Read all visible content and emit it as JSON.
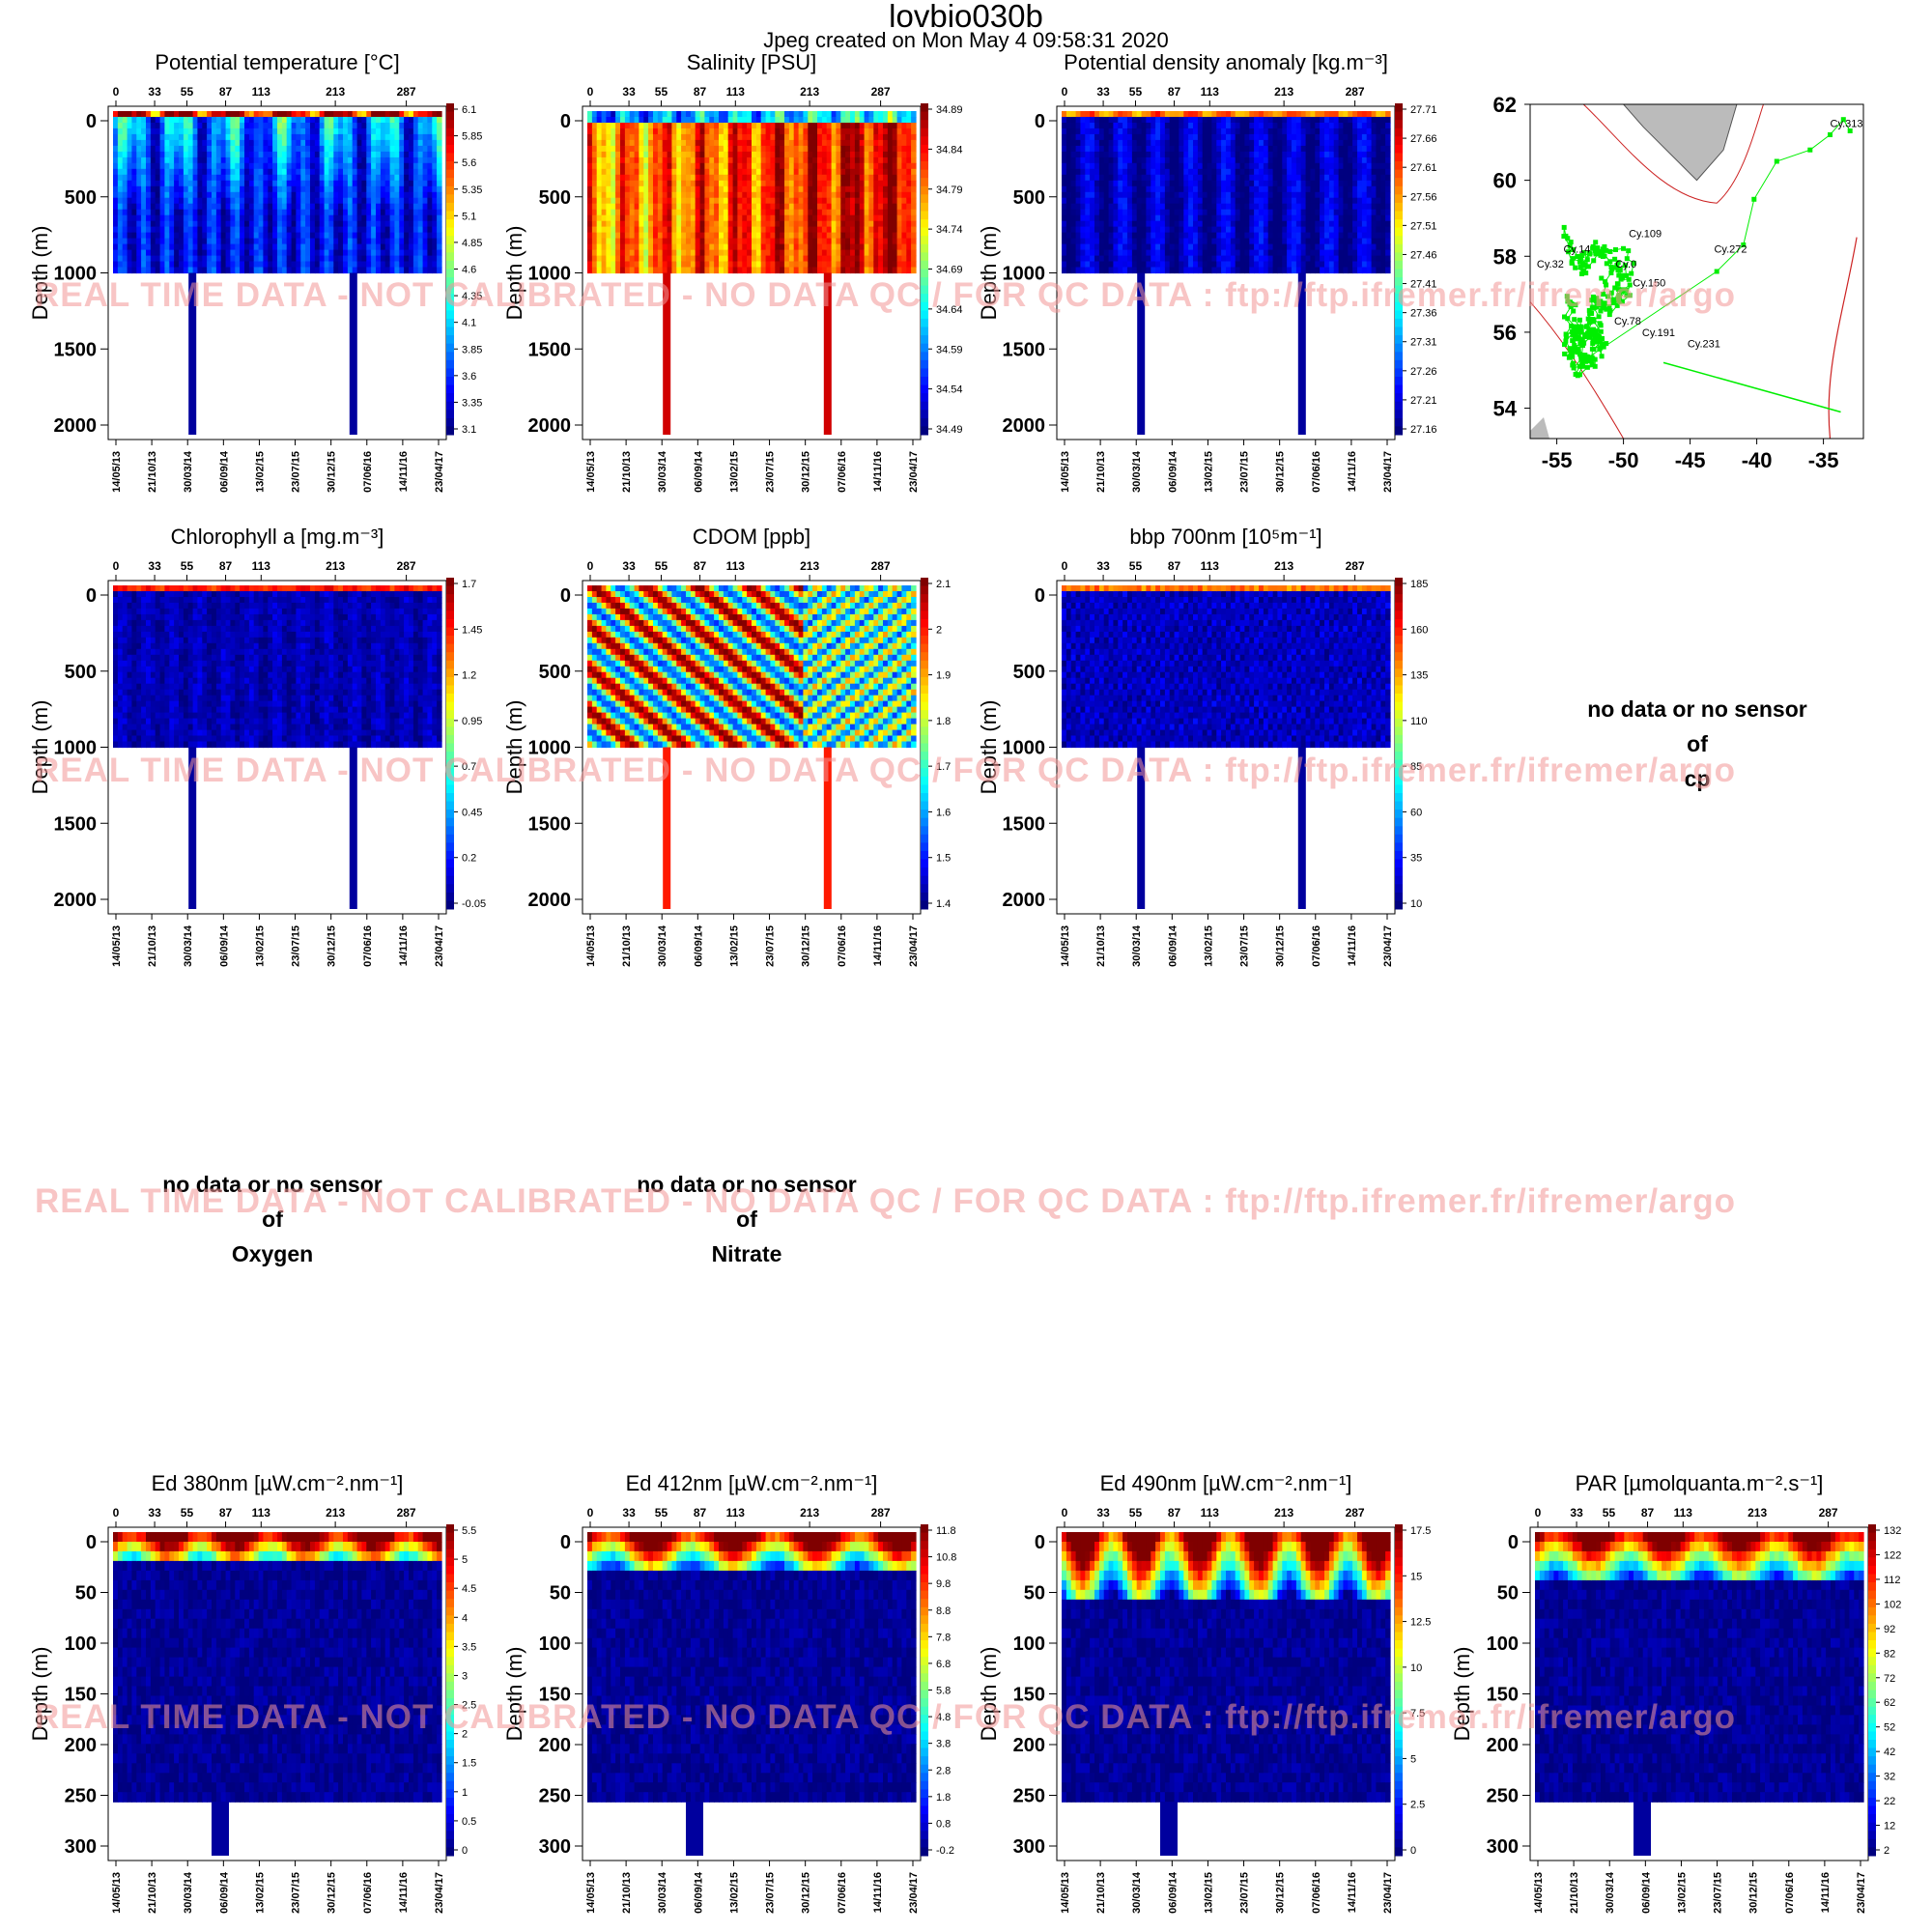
{
  "header": {
    "title": "lovbio030b",
    "subtitle": "Jpeg created on  Mon May  4 09:58:31 2020"
  },
  "watermark": "REAL TIME DATA - NOT CALIBRATED - NO DATA QC   /  FOR QC DATA : ftp://ftp.ifremer.fr/ifremer/argo",
  "colors": {
    "palette": [
      "#00007f",
      "#0000ff",
      "#007fff",
      "#00ffff",
      "#7fff7f",
      "#ffff00",
      "#ff7f00",
      "#ff0000",
      "#7f0000"
    ],
    "track": "#00ee00",
    "land": "#bbbbbb",
    "coast": "#cc2222"
  },
  "common": {
    "cycle_ticks": [
      "0",
      "33",
      "55",
      "87",
      "113",
      "213",
      "287"
    ],
    "date_ticks": [
      "14/05/13",
      "21/10/13",
      "30/03/14",
      "06/09/14",
      "13/02/15",
      "23/07/15",
      "30/12/15",
      "07/06/16",
      "14/11/16",
      "23/04/17"
    ],
    "ylabel": "Depth (m)"
  },
  "nodata": [
    {
      "lines": [
        "no data or no sensor",
        "of",
        "cp"
      ]
    },
    {
      "lines": [
        "no data or no sensor",
        "of",
        "Oxygen"
      ]
    },
    {
      "lines": [
        "no data or no sensor",
        "of",
        "Nitrate"
      ]
    }
  ],
  "chart_data": [
    {
      "type": "heatmap",
      "title": "Potential temperature [°C]",
      "ylabel": "Depth (m)",
      "ylim": [
        2000,
        0
      ],
      "yticks": [
        0,
        500,
        1000,
        1500,
        2000
      ],
      "colorbar": {
        "min": 3.1,
        "max": 6.1,
        "ticks": [
          "6.1",
          "5.85",
          "5.6",
          "5.35",
          "5.1",
          "4.85",
          "4.6",
          "4.35",
          "4.1",
          "3.85",
          "3.6",
          "3.35",
          "3.1"
        ]
      }
    },
    {
      "type": "heatmap",
      "title": "Salinity [PSU]",
      "ylabel": "Depth (m)",
      "ylim": [
        2000,
        0
      ],
      "yticks": [
        0,
        500,
        1000,
        1500,
        2000
      ],
      "colorbar": {
        "min": 34.49,
        "max": 34.89,
        "ticks": [
          "34.89",
          "34.84",
          "34.79",
          "34.74",
          "34.69",
          "34.64",
          "34.59",
          "34.54",
          "34.49"
        ]
      }
    },
    {
      "type": "heatmap",
      "title": "Potential density anomaly [kg.m⁻³]",
      "ylabel": "Depth (m)",
      "ylim": [
        2000,
        0
      ],
      "yticks": [
        0,
        500,
        1000,
        1500,
        2000
      ],
      "colorbar": {
        "min": 27.16,
        "max": 27.71,
        "ticks": [
          "27.71",
          "27.66",
          "27.61",
          "27.56",
          "27.51",
          "27.46",
          "27.41",
          "27.36",
          "27.31",
          "27.26",
          "27.21",
          "27.16"
        ]
      }
    },
    {
      "type": "scatter",
      "kind": "map",
      "xticks": [
        -55,
        -50,
        -45,
        -40,
        -35
      ],
      "yticks": [
        54,
        56,
        58,
        60,
        62
      ],
      "xlim": [
        -57,
        -32
      ],
      "ylim": [
        53.2,
        62
      ],
      "labels": [
        {
          "text": "Cy.313",
          "lon": -34.5,
          "lat": 61.4
        },
        {
          "text": "Cy.109",
          "lon": -49.6,
          "lat": 58.5
        },
        {
          "text": "Cy.14",
          "lon": -54.5,
          "lat": 58.1
        },
        {
          "text": "Cy.272",
          "lon": -43.2,
          "lat": 58.1
        },
        {
          "text": "Cy.32",
          "lon": -56.5,
          "lat": 57.7
        },
        {
          "text": "Cy.0",
          "lon": -50.6,
          "lat": 57.7
        },
        {
          "text": "Cy.150",
          "lon": -49.3,
          "lat": 57.2
        },
        {
          "text": "Cy.78",
          "lon": -50.7,
          "lat": 56.2
        },
        {
          "text": "Cy.191",
          "lon": -48.6,
          "lat": 55.9
        },
        {
          "text": "Cy.231",
          "lon": -45.2,
          "lat": 55.6
        }
      ]
    },
    {
      "type": "heatmap",
      "title": "Chlorophyll a [mg.m⁻³]",
      "ylabel": "Depth (m)",
      "ylim": [
        2000,
        0
      ],
      "yticks": [
        0,
        500,
        1000,
        1500,
        2000
      ],
      "colorbar": {
        "min": -0.05,
        "max": 1.7,
        "ticks": [
          "1.7",
          "1.45",
          "1.2",
          "0.95",
          "0.7",
          "0.45",
          "0.2",
          "-0.05"
        ]
      }
    },
    {
      "type": "heatmap",
      "title": "CDOM  [ppb]",
      "ylabel": "Depth (m)",
      "ylim": [
        2000,
        0
      ],
      "yticks": [
        0,
        500,
        1000,
        1500,
        2000
      ],
      "colorbar": {
        "min": 1.4,
        "max": 2.1,
        "ticks": [
          "2.1",
          "2",
          "1.9",
          "1.8",
          "1.7",
          "1.6",
          "1.5",
          "1.4"
        ]
      }
    },
    {
      "type": "heatmap",
      "title": "bbp 700nm [10⁵m⁻¹]",
      "ylabel": "Depth (m)",
      "ylim": [
        2000,
        0
      ],
      "yticks": [
        0,
        500,
        1000,
        1500,
        2000
      ],
      "colorbar": {
        "min": 10,
        "max": 185,
        "ticks": [
          "185",
          "160",
          "135",
          "110",
          "85",
          "60",
          "35",
          "10"
        ]
      }
    },
    {
      "type": "heatmap",
      "title": "Ed 380nm [µW.cm⁻².nm⁻¹]",
      "ylabel": "Depth (m)",
      "ylim": [
        300,
        0
      ],
      "yticks": [
        0,
        50,
        100,
        150,
        200,
        250,
        300
      ],
      "colorbar": {
        "min": 0,
        "max": 5.5,
        "ticks": [
          "5.5",
          "5",
          "4.5",
          "4",
          "3.5",
          "3",
          "2.5",
          "2",
          "1.5",
          "1",
          "0.5",
          "0"
        ]
      }
    },
    {
      "type": "heatmap",
      "title": "Ed 412nm [µW.cm⁻².nm⁻¹]",
      "ylabel": "Depth (m)",
      "ylim": [
        300,
        0
      ],
      "yticks": [
        0,
        50,
        100,
        150,
        200,
        250,
        300
      ],
      "colorbar": {
        "min": -0.2,
        "max": 11.8,
        "ticks": [
          "11.8",
          "10.8",
          "9.8",
          "8.8",
          "7.8",
          "6.8",
          "5.8",
          "4.8",
          "3.8",
          "2.8",
          "1.8",
          "0.8",
          "-0.2"
        ]
      }
    },
    {
      "type": "heatmap",
      "title": "Ed 490nm [µW.cm⁻².nm⁻¹]",
      "ylabel": "Depth (m)",
      "ylim": [
        300,
        0
      ],
      "yticks": [
        0,
        50,
        100,
        150,
        200,
        250,
        300
      ],
      "colorbar": {
        "min": 0,
        "max": 17.5,
        "ticks": [
          "17.5",
          "15",
          "12.5",
          "10",
          "7.5",
          "5",
          "2.5",
          "0"
        ]
      }
    },
    {
      "type": "heatmap",
      "title": "PAR [µmolquanta.m⁻².s⁻¹]",
      "ylabel": "Depth (m)",
      "ylim": [
        300,
        0
      ],
      "yticks": [
        0,
        50,
        100,
        150,
        200,
        250,
        300
      ],
      "colorbar": {
        "min": 2,
        "max": 132,
        "ticks": [
          "132",
          "122",
          "112",
          "102",
          "92",
          "82",
          "72",
          "62",
          "52",
          "42",
          "32",
          "22",
          "12",
          "2"
        ]
      }
    }
  ]
}
